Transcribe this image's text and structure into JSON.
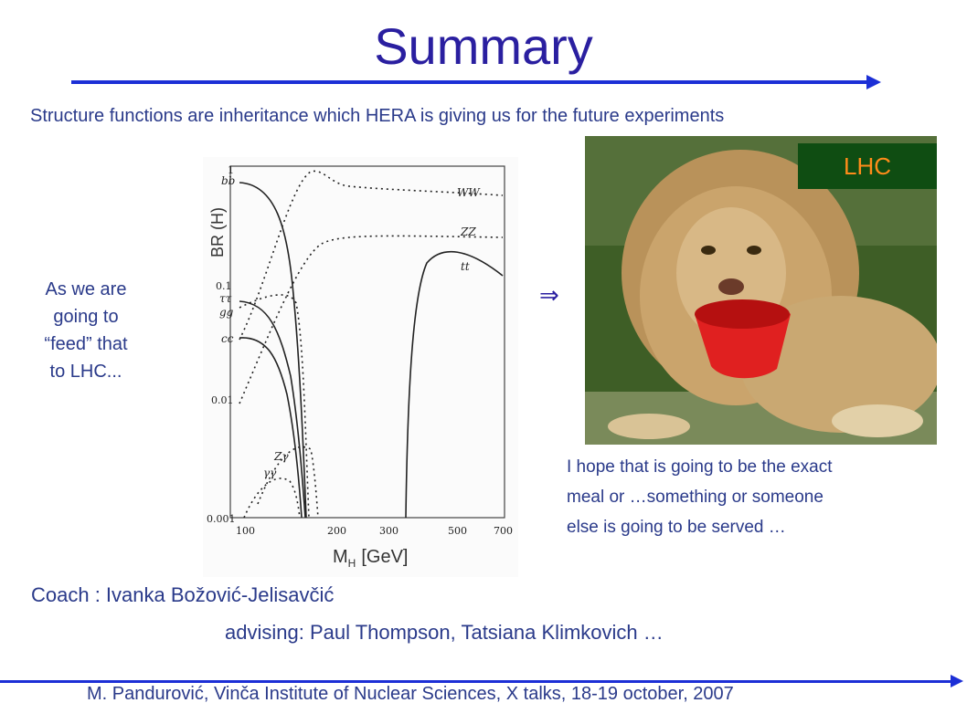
{
  "slide": {
    "title": "Summary",
    "intro": "Structure functions are inheritance which HERA is giving us for the future experiments",
    "feed_lines": [
      "As we are",
      "going to",
      "“feed” that",
      "to LHC..."
    ],
    "implies_symbol": "⇒",
    "lhc_label": "LHC",
    "hope_lines": [
      "I hope that is going to be the exact",
      "meal or  …something or someone",
      "else is going to be served …"
    ],
    "coach": "Coach : Ivanka Božović-Jelisavčić",
    "advising": "advising: Paul Thompson, Tatsiana Klimkovich …",
    "footer": "M. Pandurović, Vinča Institute of Nuclear Sciences, X talks, 18-19 october, 2007"
  },
  "photo": {
    "description_icon": "lion-with-red-bowl-photo"
  },
  "chart_data": {
    "type": "line",
    "ylabel": "BR (H)",
    "xlabel": "M",
    "xlabel_sub": "H",
    "xlabel_unit": "[GeV]",
    "y_scale": "log",
    "ylim": [
      0.001,
      1
    ],
    "xlim": [
      100,
      700
    ],
    "x_ticks": [
      "100",
      "200",
      "300",
      "500",
      "700"
    ],
    "y_ticks": [
      "1",
      "0.1",
      "0.01",
      "0.001"
    ],
    "series": [
      {
        "name": "bb",
        "style": "solid"
      },
      {
        "name": "WW",
        "style": "dotted"
      },
      {
        "name": "ZZ",
        "style": "dotted"
      },
      {
        "name": "tt",
        "style": "solid"
      },
      {
        "name": "ττ",
        "style": "dotted"
      },
      {
        "name": "gg",
        "style": "dotted"
      },
      {
        "name": "cc",
        "style": "solid"
      },
      {
        "name": "Zγ",
        "style": "dotted"
      },
      {
        "name": "γγ",
        "style": "dotted"
      }
    ]
  }
}
